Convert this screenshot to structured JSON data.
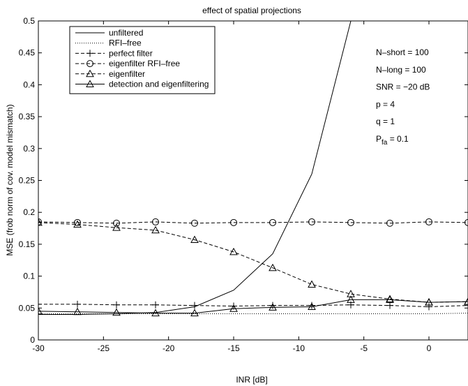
{
  "chart_data": {
    "type": "line",
    "title": "effect of spatial projections",
    "xlabel": "INR [dB]",
    "ylabel": "MSE (frob norm of cov. model mismatch)",
    "x": [
      -30,
      -27,
      -24,
      -21,
      -18,
      -15,
      -12,
      -9,
      -6,
      -3,
      0,
      3
    ],
    "xlim": [
      -30,
      3
    ],
    "xticks": [
      -30,
      -25,
      -20,
      -15,
      -10,
      -5,
      0
    ],
    "ylim": [
      0,
      0.5
    ],
    "yticks": [
      0,
      0.05,
      0.1,
      0.15,
      0.2,
      0.25,
      0.3,
      0.35,
      0.4,
      0.45,
      0.5
    ],
    "grid": false,
    "legend": "upper left",
    "series": [
      {
        "name": "unfiltered",
        "color": "#000000",
        "style": "solid",
        "marker": "none",
        "values": [
          0.04,
          0.04,
          0.041,
          0.043,
          0.052,
          0.078,
          0.135,
          0.26,
          0.5,
          null,
          null,
          null
        ]
      },
      {
        "name": "RFI–free",
        "color": "#000000",
        "style": "dotted",
        "marker": "none",
        "values": [
          0.041,
          0.041,
          0.041,
          0.041,
          0.041,
          0.041,
          0.041,
          0.041,
          0.041,
          0.041,
          0.041,
          0.042
        ]
      },
      {
        "name": "perfect filter",
        "color": "#000000",
        "style": "dashed",
        "marker": "plus",
        "values": [
          0.056,
          0.056,
          0.055,
          0.055,
          0.054,
          0.053,
          0.054,
          0.054,
          0.055,
          0.054,
          0.052,
          0.054
        ]
      },
      {
        "name": "eigenfilter RFI–free",
        "color": "#000000",
        "style": "dashed",
        "marker": "circle",
        "values": [
          0.185,
          0.184,
          0.183,
          0.185,
          0.183,
          0.184,
          0.184,
          0.185,
          0.184,
          0.183,
          0.185,
          0.184
        ]
      },
      {
        "name": "eigenfilter",
        "color": "#000000",
        "style": "dashed",
        "marker": "triangle",
        "values": [
          0.184,
          0.181,
          0.176,
          0.172,
          0.157,
          0.138,
          0.113,
          0.087,
          0.072,
          0.064,
          0.059,
          0.06
        ]
      },
      {
        "name": "detection and eigenfiltering",
        "color": "#000000",
        "style": "solid",
        "marker": "triangle",
        "values": [
          0.045,
          0.044,
          0.043,
          0.042,
          0.042,
          0.049,
          0.051,
          0.052,
          0.063,
          0.063,
          0.059,
          0.06
        ]
      }
    ],
    "annotations": [
      {
        "text": "N–short = 100"
      },
      {
        "text": "N–long  = 100"
      },
      {
        "text": "SNR = −20 dB"
      },
      {
        "text": "p = 4"
      },
      {
        "text": "q = 1"
      },
      {
        "text": "P",
        "sub": "fa",
        "rest": " = 0.1"
      }
    ]
  }
}
